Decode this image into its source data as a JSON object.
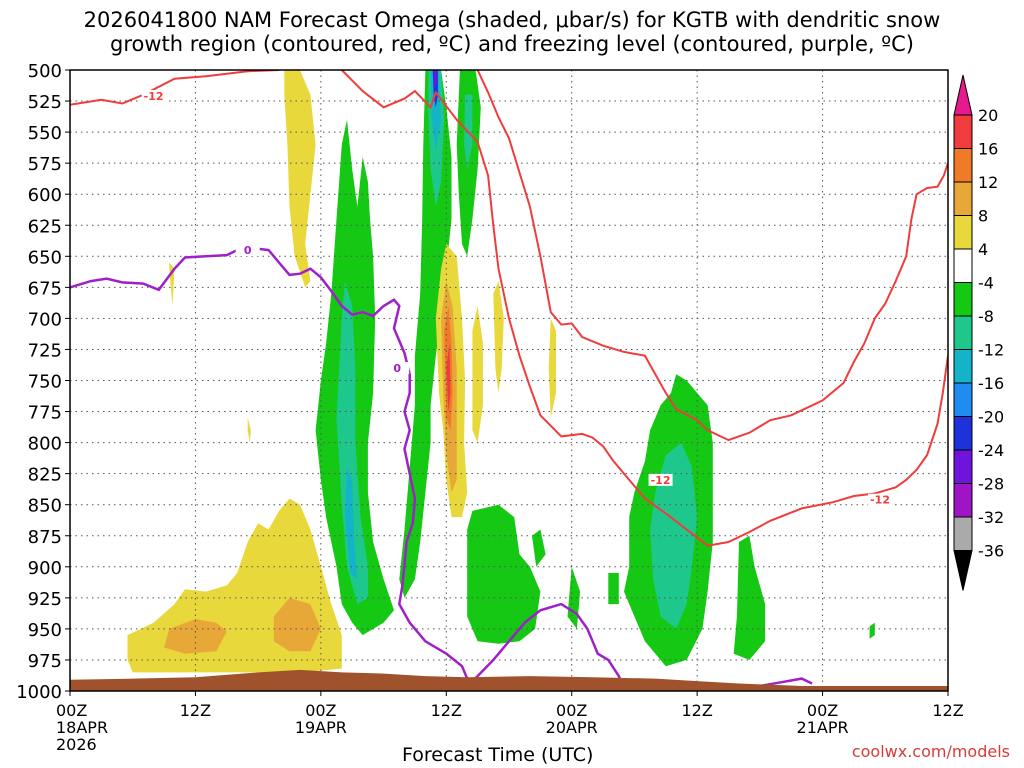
{
  "title_line1": "2026041800 NAM Forecast Omega (shaded, μbar/s) for KGTB with dendritic snow",
  "title_line2": "growth region (contoured, red, ºC) and freezing level (contoured, purple, ºC)",
  "x_axis_title": "Forecast Time (UTC)",
  "credit": "coolwx.com/models",
  "chart_data": {
    "type": "heatmap",
    "title": "2026041800 NAM Forecast Omega (shaded, μbar/s) for KGTB with dendritic snow growth region (contoured, red, ºC) and freezing level (contoured, purple, ºC)",
    "xlabel": "Forecast Time (UTC)",
    "ylabel": "",
    "x_range_hours": [
      0,
      84
    ],
    "y_range_hpa": [
      500,
      1000
    ],
    "y_ticks": [
      500,
      525,
      550,
      575,
      600,
      625,
      650,
      675,
      700,
      725,
      750,
      775,
      800,
      825,
      850,
      875,
      900,
      925,
      950,
      975,
      1000
    ],
    "x_ticks": [
      {
        "hour": 0,
        "lines": [
          "00Z",
          "18APR",
          "2026"
        ]
      },
      {
        "hour": 12,
        "lines": [
          "12Z"
        ]
      },
      {
        "hour": 24,
        "lines": [
          "00Z",
          "19APR"
        ]
      },
      {
        "hour": 36,
        "lines": [
          "12Z"
        ]
      },
      {
        "hour": 48,
        "lines": [
          "00Z",
          "20APR"
        ]
      },
      {
        "hour": 60,
        "lines": [
          "12Z"
        ]
      },
      {
        "hour": 72,
        "lines": [
          "00Z",
          "21APR"
        ]
      },
      {
        "hour": 84,
        "lines": [
          "12Z"
        ]
      }
    ],
    "grid": true,
    "colorbar": {
      "labels": [
        "20",
        "16",
        "12",
        "8",
        "4",
        "-4",
        "-8",
        "-12",
        "-16",
        "-20",
        "-24",
        "-28",
        "-32",
        "-36"
      ],
      "bins": [
        {
          "range": ">20",
          "color": "#e8198c"
        },
        {
          "range": "16 to 20",
          "color": "#f03c3c"
        },
        {
          "range": "12 to 16",
          "color": "#f07a28"
        },
        {
          "range": "8 to 12",
          "color": "#e8a838"
        },
        {
          "range": "4 to 8",
          "color": "#e8d83c"
        },
        {
          "range": "-4 to 4",
          "color": "#ffffff"
        },
        {
          "range": "-8 to -4",
          "color": "#14c814"
        },
        {
          "range": "-12 to -8",
          "color": "#1ec88c"
        },
        {
          "range": "-16 to -12",
          "color": "#14b4c8"
        },
        {
          "range": "-20 to -16",
          "color": "#1e8cf0"
        },
        {
          "range": "-24 to -20",
          "color": "#1e32dc"
        },
        {
          "range": "-28 to -24",
          "color": "#6e14dc"
        },
        {
          "range": "-32 to -28",
          "color": "#a014c8"
        },
        {
          "range": "-36 to -32",
          "color": "#aaaaaa"
        },
        {
          "range": "<-36",
          "color": "#000000"
        }
      ]
    },
    "contour_labels": [
      {
        "text": "-12",
        "color": "#f03c3c"
      },
      {
        "text": "-12",
        "color": "#f03c3c"
      },
      {
        "text": "-12",
        "color": "#f03c3c"
      },
      {
        "text": "0",
        "color": "#a020c8"
      },
      {
        "text": "0",
        "color": "#a020c8"
      }
    ],
    "red_contours_minus12": [
      {
        "points": [
          [
            0,
            528
          ],
          [
            3,
            524
          ],
          [
            5,
            527
          ],
          [
            7,
            520
          ],
          [
            10,
            507
          ],
          [
            13,
            505
          ],
          [
            17,
            501
          ],
          [
            20,
            500
          ]
        ]
      },
      {
        "points": [
          [
            26,
            500
          ],
          [
            28,
            517
          ],
          [
            30,
            530
          ],
          [
            32,
            523
          ],
          [
            33,
            517
          ],
          [
            34.5,
            530
          ],
          [
            35,
            518
          ],
          [
            37,
            540
          ],
          [
            39,
            558
          ],
          [
            40,
            585
          ],
          [
            40.5,
            625
          ],
          [
            41,
            660
          ],
          [
            42,
            700
          ],
          [
            43,
            730
          ],
          [
            44,
            755
          ],
          [
            45,
            778
          ],
          [
            47,
            795
          ],
          [
            49,
            793
          ],
          [
            50,
            796
          ],
          [
            51,
            803
          ],
          [
            52,
            815
          ],
          [
            53.5,
            830
          ],
          [
            55,
            845
          ],
          [
            57,
            857
          ],
          [
            59,
            870
          ],
          [
            61,
            883
          ],
          [
            63,
            880
          ],
          [
            65,
            872
          ],
          [
            67,
            863
          ],
          [
            70,
            853
          ],
          [
            73,
            848
          ],
          [
            75,
            843
          ],
          [
            77,
            841
          ],
          [
            79,
            836
          ],
          [
            80,
            830
          ],
          [
            81,
            822
          ],
          [
            82,
            810
          ],
          [
            83,
            785
          ],
          [
            83.5,
            760
          ],
          [
            84,
            730
          ]
        ]
      },
      {
        "points": [
          [
            39,
            500
          ],
          [
            40,
            518
          ],
          [
            41,
            538
          ],
          [
            42,
            555
          ],
          [
            44,
            610
          ],
          [
            45,
            650
          ],
          [
            46,
            695
          ],
          [
            47,
            705
          ],
          [
            48,
            704
          ],
          [
            49,
            715
          ],
          [
            51,
            722
          ],
          [
            53,
            727
          ],
          [
            55,
            730
          ],
          [
            56,
            745
          ],
          [
            57,
            760
          ],
          [
            58,
            773
          ],
          [
            60,
            782
          ],
          [
            61,
            790
          ],
          [
            63,
            798
          ],
          [
            65,
            792
          ],
          [
            67,
            782
          ],
          [
            69,
            778
          ],
          [
            72,
            766
          ],
          [
            74,
            752
          ],
          [
            75,
            735
          ],
          [
            76,
            720
          ],
          [
            77,
            700
          ],
          [
            78,
            688
          ],
          [
            79,
            670
          ],
          [
            80,
            650
          ],
          [
            80.5,
            620
          ],
          [
            81,
            600
          ],
          [
            82,
            595
          ],
          [
            83,
            594
          ],
          [
            83.6,
            585
          ],
          [
            84,
            575
          ]
        ]
      }
    ],
    "purple_contours_0": [
      {
        "points": [
          [
            0,
            675
          ],
          [
            2,
            670
          ],
          [
            3.5,
            668
          ],
          [
            5,
            671
          ],
          [
            7,
            672
          ],
          [
            8.5,
            677
          ],
          [
            10,
            660
          ],
          [
            11,
            651
          ],
          [
            13,
            650
          ],
          [
            15,
            649
          ],
          [
            16,
            645
          ],
          [
            18,
            644
          ],
          [
            19,
            645
          ],
          [
            20,
            655
          ],
          [
            21,
            665
          ],
          [
            22,
            664
          ],
          [
            23,
            660
          ],
          [
            24,
            667
          ],
          [
            25,
            678
          ],
          [
            26,
            690
          ],
          [
            27,
            697
          ],
          [
            28,
            695
          ],
          [
            29,
            698
          ],
          [
            30,
            690
          ],
          [
            31,
            685
          ],
          [
            31.5,
            690
          ],
          [
            31,
            708
          ],
          [
            32,
            728
          ],
          [
            32.5,
            745
          ],
          [
            32.5,
            760
          ],
          [
            32,
            775
          ],
          [
            32.5,
            790
          ],
          [
            32,
            805
          ],
          [
            32.5,
            825
          ],
          [
            33,
            845
          ],
          [
            32.8,
            865
          ],
          [
            32.2,
            880
          ],
          [
            32,
            898
          ],
          [
            31.8,
            915
          ],
          [
            31.5,
            930
          ],
          [
            32.5,
            945
          ],
          [
            34,
            960
          ],
          [
            36,
            970
          ],
          [
            37.5,
            980
          ],
          [
            38,
            990
          ]
        ]
      },
      {
        "points": [
          [
            37.5,
            1000
          ],
          [
            39,
            988
          ],
          [
            40.5,
            975
          ],
          [
            42,
            960
          ],
          [
            43.5,
            945
          ],
          [
            45,
            935
          ],
          [
            47,
            930
          ],
          [
            48.5,
            938
          ],
          [
            49.5,
            950
          ],
          [
            50.5,
            970
          ],
          [
            51.5,
            975
          ],
          [
            52.5,
            988
          ],
          [
            53,
            998
          ]
        ]
      },
      {
        "points": [
          [
            66,
            996
          ],
          [
            68,
            993
          ],
          [
            70,
            990
          ],
          [
            71,
            994
          ]
        ]
      }
    ]
  }
}
